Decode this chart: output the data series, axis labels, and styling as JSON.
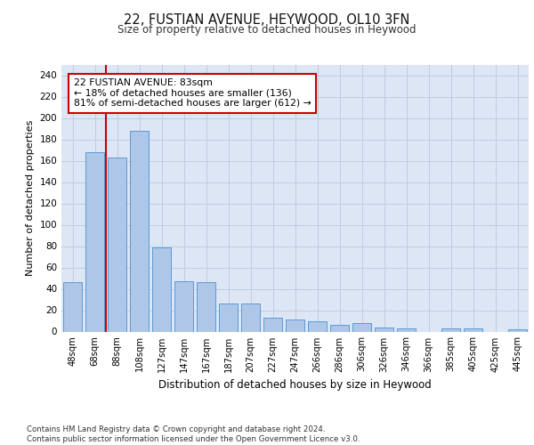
{
  "title": "22, FUSTIAN AVENUE, HEYWOOD, OL10 3FN",
  "subtitle": "Size of property relative to detached houses in Heywood",
  "xlabel": "Distribution of detached houses by size in Heywood",
  "ylabel": "Number of detached properties",
  "bar_labels": [
    "48sqm",
    "68sqm",
    "88sqm",
    "108sqm",
    "127sqm",
    "147sqm",
    "167sqm",
    "187sqm",
    "207sqm",
    "227sqm",
    "247sqm",
    "266sqm",
    "286sqm",
    "306sqm",
    "326sqm",
    "346sqm",
    "366sqm",
    "385sqm",
    "405sqm",
    "425sqm",
    "445sqm"
  ],
  "bar_values": [
    46,
    168,
    163,
    188,
    79,
    47,
    46,
    26,
    26,
    13,
    11,
    10,
    6,
    8,
    4,
    3,
    0,
    3,
    3,
    0,
    2
  ],
  "bar_color": "#aec6e8",
  "bar_edge_color": "#5b9bd5",
  "vline_color": "#cc0000",
  "vline_x_index": 1.5,
  "annotation_text": "22 FUSTIAN AVENUE: 83sqm\n← 18% of detached houses are smaller (136)\n81% of semi-detached houses are larger (612) →",
  "annotation_box_color": "#ffffff",
  "annotation_box_edge": "#cc0000",
  "ylim": [
    0,
    250
  ],
  "yticks": [
    0,
    20,
    40,
    60,
    80,
    100,
    120,
    140,
    160,
    180,
    200,
    220,
    240
  ],
  "bg_color": "#dce6f5",
  "footer_line1": "Contains HM Land Registry data © Crown copyright and database right 2024.",
  "footer_line2": "Contains public sector information licensed under the Open Government Licence v3.0."
}
